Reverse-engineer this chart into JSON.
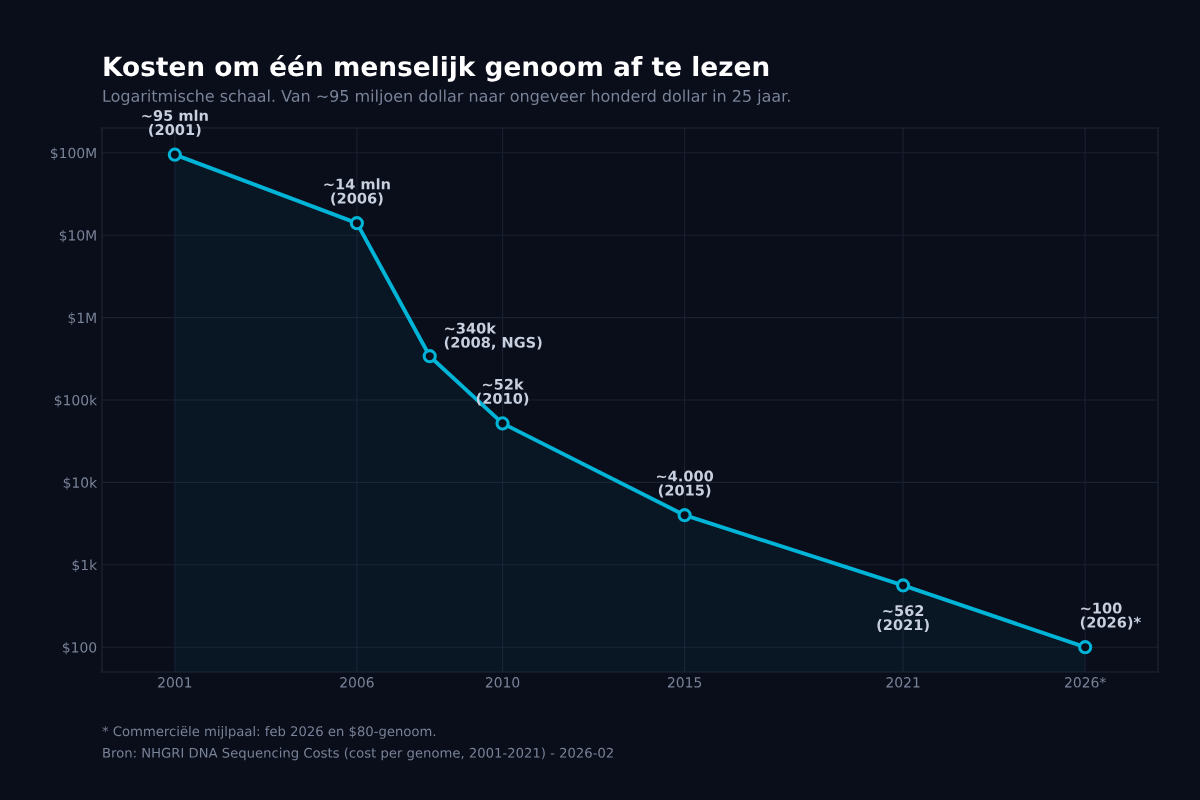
{
  "chart_data": {
    "type": "area",
    "title": "Kosten om één menselijk genoom af te lezen",
    "subtitle": "Logaritmische schaal. Van ~95 miljoen dollar naar ongeveer honderd dollar in 25 jaar.",
    "x": [
      2001,
      2006,
      2008,
      2010,
      2015,
      2021,
      2026
    ],
    "series": [
      {
        "color": "#00b4d8",
        "values": [
          95000000,
          14000000,
          340000,
          52000,
          4000,
          562,
          100
        ]
      }
    ],
    "log": "y",
    "xlim": [
      1999,
      2028
    ],
    "ylim": [
      50,
      200000000
    ],
    "xticks": [
      2001,
      2006,
      2010,
      2015,
      2021,
      {
        "value": 2026,
        "label": "2026*"
      }
    ],
    "yticks": [
      {
        "value": 100,
        "label": "$100"
      },
      {
        "value": 1000,
        "label": "$1k"
      },
      {
        "value": 10000,
        "label": "$10k"
      },
      {
        "value": 100000,
        "label": "$100k"
      },
      {
        "value": 1000000,
        "label": "$1M"
      },
      {
        "value": 10000000,
        "label": "$10M"
      },
      {
        "value": 100000000,
        "label": "$100M"
      }
    ],
    "grid": true,
    "marker": "circle",
    "line_style": "solid",
    "legend": false,
    "annotations": [
      {
        "text": "~95 mln\n(2001)",
        "x": 2001,
        "y": 95000000
      },
      {
        "text": "~14 mln\n(2006)",
        "x": 2006,
        "y": 14000000
      },
      {
        "text": "~340k\n(2008, NGS)",
        "x": 2008,
        "y": 340000
      },
      {
        "text": "~52k\n(2010)",
        "x": 2010,
        "y": 52000
      },
      {
        "text": "~4.000\n(2015)",
        "x": 2015,
        "y": 4000
      },
      {
        "text": "~562\n(2021)",
        "x": 2021,
        "y": 562
      },
      {
        "text": "~100\n(2026)*",
        "x": 2026,
        "y": 100
      },
      "* Commerciële mijlpaal: feb 2026 en $80-genoom.",
      "Bron: NHGRI DNA Sequencing Costs (cost per genome, 2001-2021) - 2026-02"
    ]
  }
}
